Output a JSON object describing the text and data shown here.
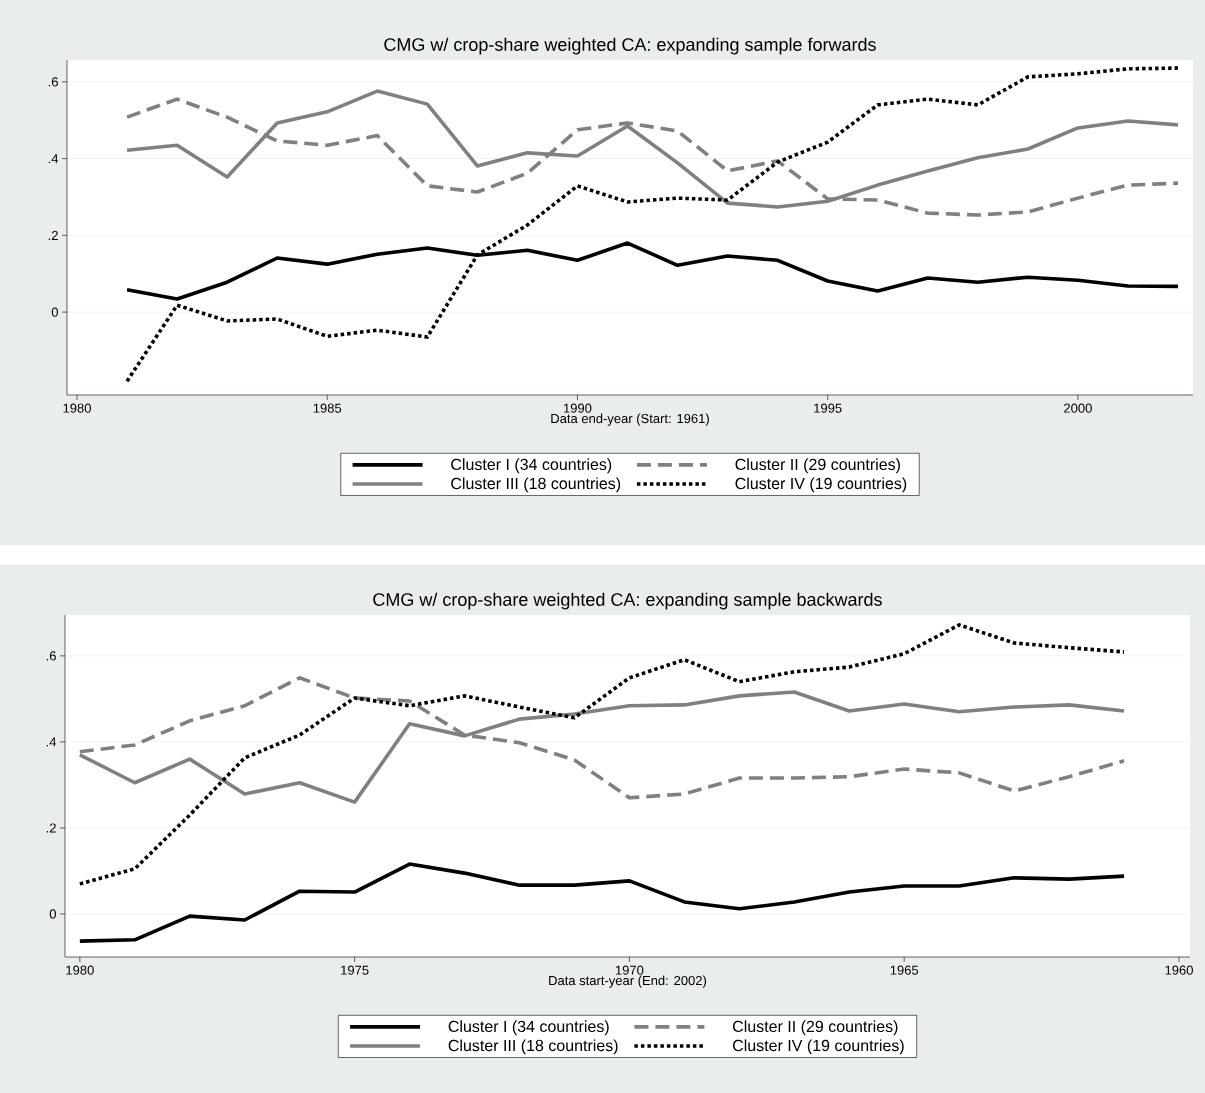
{
  "chart_data": [
    {
      "type": "line",
      "title": "CMG w/ crop-share weighted CA: expanding sample forwards",
      "xlabel": "Data end-year (Start: 1961)",
      "x": [
        1981,
        1982,
        1983,
        1984,
        1985,
        1986,
        1987,
        1988,
        1989,
        1990,
        1991,
        1992,
        1993,
        1994,
        1995,
        1996,
        1997,
        1998,
        1999,
        2000,
        2001,
        2002
      ],
      "series": [
        {
          "name": "Cluster I (34 countries)",
          "color": "#000000",
          "line_style": "solid",
          "values": [
            0.058,
            0.034,
            0.078,
            0.141,
            0.125,
            0.151,
            0.167,
            0.148,
            0.161,
            0.135,
            0.18,
            0.122,
            0.146,
            0.135,
            0.081,
            0.055,
            0.089,
            0.078,
            0.091,
            0.083,
            0.068,
            0.067
          ]
        },
        {
          "name": "Cluster II (29 countries)",
          "color": "#808080",
          "line_style": "dashed",
          "values": [
            0.508,
            0.555,
            0.508,
            0.446,
            0.435,
            0.46,
            0.329,
            0.313,
            0.362,
            0.475,
            0.493,
            0.472,
            0.368,
            0.394,
            0.295,
            0.292,
            0.258,
            0.253,
            0.261,
            0.297,
            0.331,
            0.336
          ]
        },
        {
          "name": "Cluster III (18 countries)",
          "color": "#808080",
          "line_style": "solid",
          "values": [
            0.422,
            0.435,
            0.352,
            0.493,
            0.522,
            0.576,
            0.542,
            0.381,
            0.415,
            0.407,
            0.485,
            0.389,
            0.284,
            0.274,
            0.289,
            0.331,
            0.368,
            0.402,
            0.425,
            0.48,
            0.498,
            0.488
          ]
        },
        {
          "name": "Cluster IV (19 countries)",
          "color": "#000000",
          "line_style": "dotted",
          "values": [
            -0.18,
            0.018,
            -0.023,
            -0.018,
            -0.063,
            -0.047,
            -0.065,
            0.149,
            0.227,
            0.329,
            0.287,
            0.297,
            0.292,
            0.391,
            0.443,
            0.54,
            0.555,
            0.54,
            0.613,
            0.621,
            0.634,
            0.636
          ]
        }
      ],
      "xlim": [
        1979.8,
        2002.3
      ],
      "ylim": [
        -0.216,
        0.657
      ],
      "xticks": [
        1980,
        1985,
        1990,
        1995,
        2000
      ],
      "yticks": [
        {
          "value": 0,
          "label": "0"
        },
        {
          "value": 0.2,
          "label": ".2"
        },
        {
          "value": 0.4,
          "label": ".4"
        },
        {
          "value": 0.6,
          "label": ".6"
        }
      ],
      "grid": "y",
      "legend": "bottom"
    },
    {
      "type": "line",
      "title": "CMG w/ crop-share weighted CA: expanding sample backwards",
      "xlabel": "Data start-year (End: 2002)",
      "x": [
        1980,
        1979,
        1978,
        1977,
        1976,
        1975,
        1974,
        1973,
        1972,
        1971,
        1970,
        1969,
        1968,
        1967,
        1966,
        1965,
        1964,
        1963,
        1962,
        1961
      ],
      "series": [
        {
          "name": "Cluster I (34 countries)",
          "color": "#000000",
          "line_style": "solid",
          "values": [
            -0.063,
            -0.06,
            -0.005,
            -0.014,
            0.053,
            0.051,
            0.116,
            0.095,
            0.067,
            0.067,
            0.077,
            0.028,
            0.012,
            0.028,
            0.051,
            0.065,
            0.065,
            0.084,
            0.081,
            0.088
          ]
        },
        {
          "name": "Cluster II (29 countries)",
          "color": "#808080",
          "line_style": "dashed",
          "values": [
            0.377,
            0.393,
            0.449,
            0.484,
            0.549,
            0.502,
            0.495,
            0.416,
            0.398,
            0.358,
            0.27,
            0.279,
            0.316,
            0.316,
            0.319,
            0.337,
            0.328,
            0.286,
            0.319,
            0.356
          ]
        },
        {
          "name": "Cluster III (18 countries)",
          "color": "#808080",
          "line_style": "solid",
          "values": [
            0.37,
            0.305,
            0.36,
            0.279,
            0.305,
            0.26,
            0.442,
            0.414,
            0.453,
            0.465,
            0.484,
            0.486,
            0.507,
            0.516,
            0.472,
            0.488,
            0.47,
            0.481,
            0.486,
            0.472
          ]
        },
        {
          "name": "Cluster IV (19 countries)",
          "color": "#000000",
          "line_style": "dotted",
          "values": [
            0.07,
            0.105,
            0.23,
            0.363,
            0.416,
            0.502,
            0.484,
            0.507,
            0.481,
            0.456,
            0.549,
            0.591,
            0.54,
            0.563,
            0.574,
            0.605,
            0.672,
            0.63,
            0.619,
            0.609
          ]
        }
      ],
      "xlim": [
        1980.27,
        1959.8
      ],
      "ylim": [
        -0.1,
        0.695
      ],
      "xticks": [
        1980,
        1975,
        1970,
        1965,
        1960
      ],
      "yticks": [
        {
          "value": 0,
          "label": "0"
        },
        {
          "value": 0.2,
          "label": ".2"
        },
        {
          "value": 0.4,
          "label": ".4"
        },
        {
          "value": 0.6,
          "label": ".6"
        }
      ],
      "grid": "y",
      "legend": "bottom"
    }
  ]
}
